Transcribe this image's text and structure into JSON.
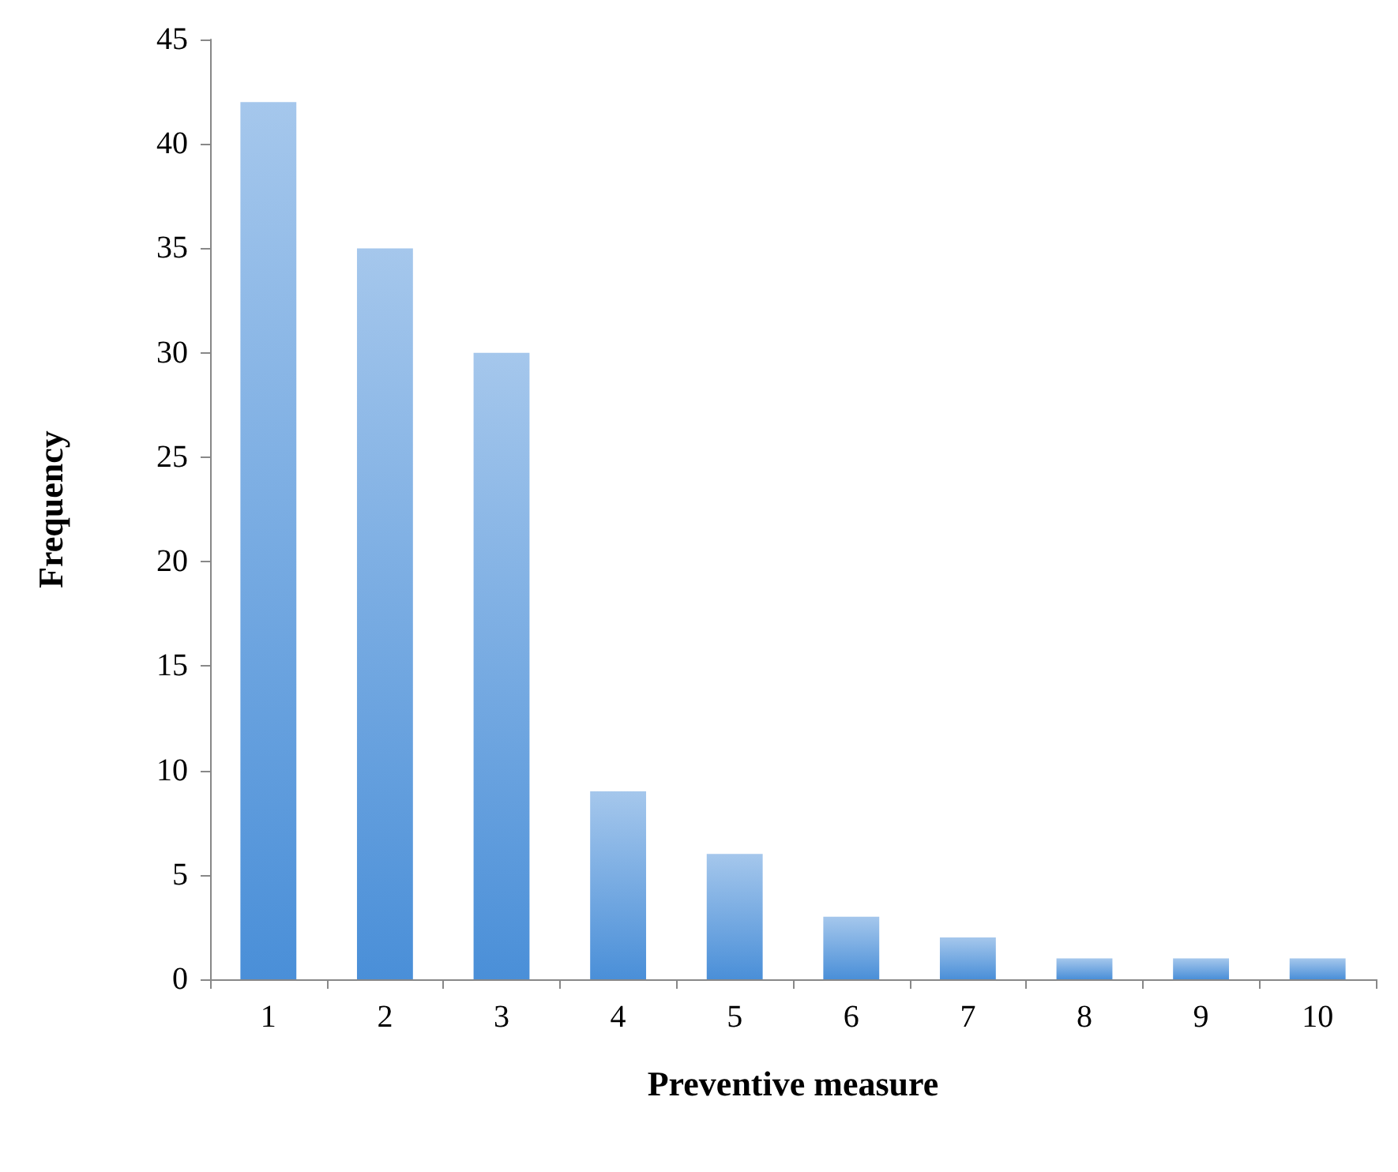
{
  "chart_data": {
    "type": "bar",
    "xlabel": "Preventive measure",
    "ylabel": "Frequency",
    "categories": [
      "1",
      "2",
      "3",
      "4",
      "5",
      "6",
      "7",
      "8",
      "9",
      "10"
    ],
    "values": [
      42,
      35,
      30,
      9,
      6,
      3,
      2,
      1,
      1,
      1
    ],
    "color": "#4a8fd8",
    "ylim": [
      0,
      45
    ],
    "yticks": [
      0,
      5,
      10,
      15,
      20,
      25,
      30,
      35,
      40,
      45
    ],
    "grid": false
  }
}
